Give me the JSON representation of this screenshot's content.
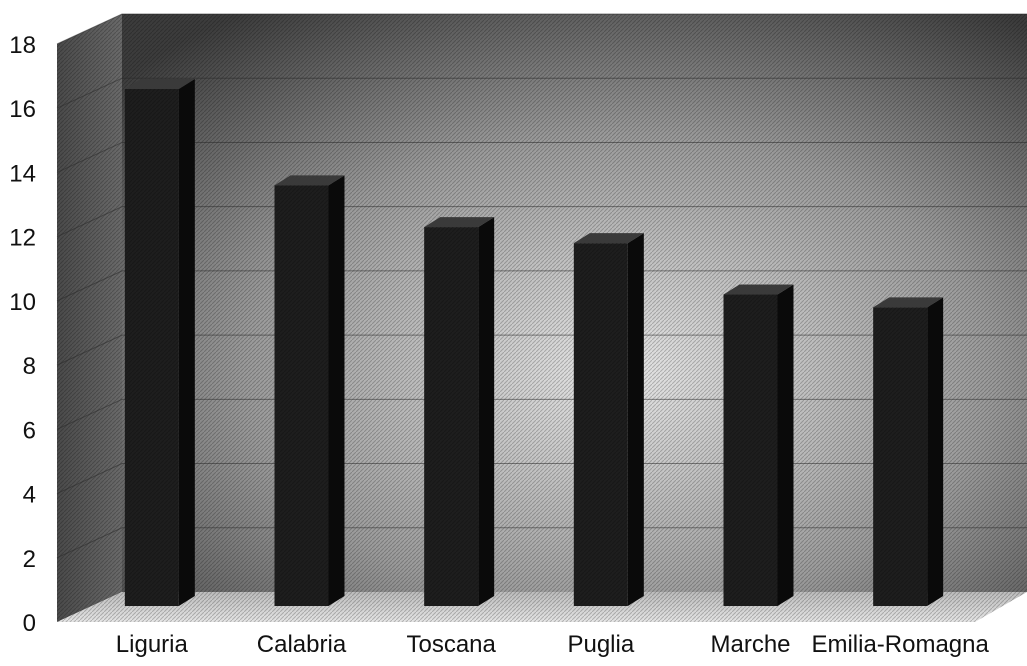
{
  "chart_data": {
    "type": "bar",
    "categories": [
      "Liguria",
      "Calabria",
      "Toscana",
      "Puglia",
      "Marche",
      "Emilia-Romagna"
    ],
    "values": [
      16.1,
      13.1,
      11.8,
      11.3,
      9.7,
      9.3
    ],
    "ylim": [
      0,
      18
    ],
    "yticks": [
      0,
      2,
      4,
      6,
      8,
      10,
      12,
      14,
      16,
      18
    ],
    "grid": true,
    "three_d": true,
    "colors": {
      "bar_front": "#1e1e1e",
      "bar_side": "#0a0a0a",
      "bar_top": "#3a3a3a",
      "wall_dark": "#3f3f3f",
      "wall_light": "#e0e0e0",
      "side_wall": "#5a5a5a",
      "floor": "#cfcfcf"
    }
  }
}
